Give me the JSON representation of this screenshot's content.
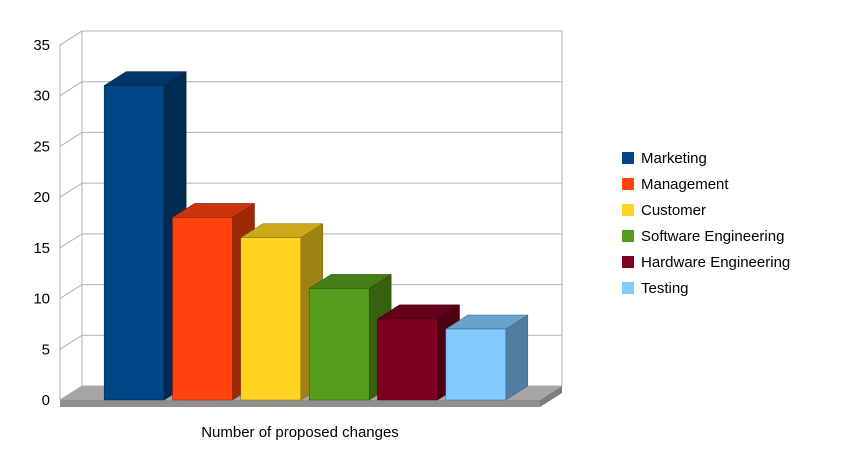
{
  "chart_data": {
    "type": "bar",
    "projection": "3d",
    "title": "",
    "xlabel": "Number of proposed changes",
    "ylabel": "",
    "categories": [
      "Marketing",
      "Management",
      "Customer",
      "Software Engineering",
      "Hardware Engineering",
      "Testing"
    ],
    "values": [
      31,
      18,
      16,
      11,
      8,
      7
    ],
    "colors": [
      "#004586",
      "#FF420E",
      "#FFD320",
      "#579D1C",
      "#7E0021",
      "#83CAFF"
    ],
    "ylim": [
      0,
      35
    ],
    "yticks": [
      0,
      5,
      10,
      15,
      20,
      25,
      30,
      35
    ],
    "grid": "horizontal",
    "legend_position": "right",
    "wall_color": "#ffffff",
    "wall_border_color": "#b3b3b3",
    "floor_top_color": "#a6a6a6",
    "floor_front_color": "#8f8f8f",
    "floor_side_color": "#7d7d7d"
  }
}
